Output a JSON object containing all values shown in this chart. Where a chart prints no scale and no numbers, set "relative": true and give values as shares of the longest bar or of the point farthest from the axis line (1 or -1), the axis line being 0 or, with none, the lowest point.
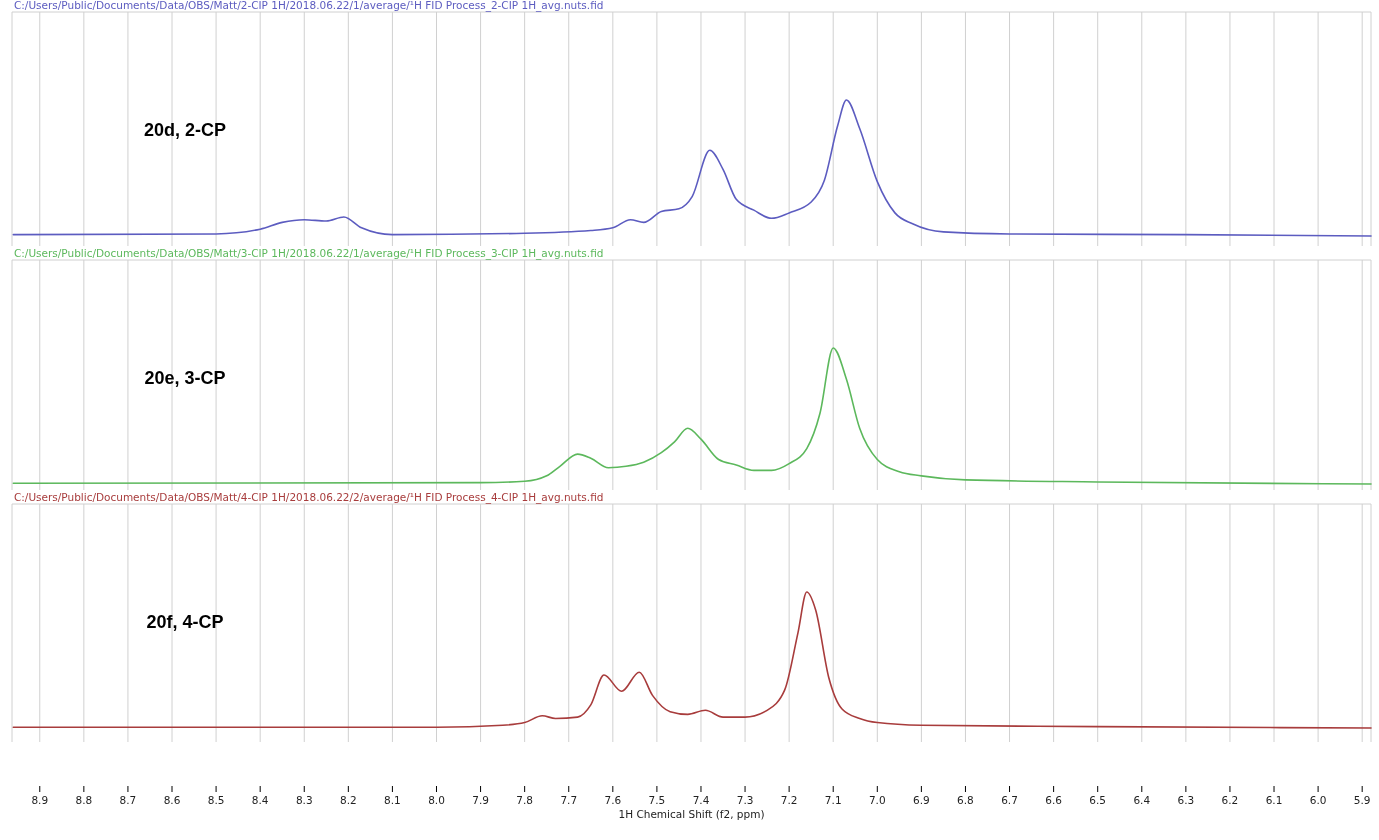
{
  "chart_data": [
    {
      "type": "line",
      "relative": true,
      "grid": "x",
      "tick_labels": false,
      "xlim": [
        8.963,
        5.88
      ],
      "xticks": [
        8.9,
        8.8,
        8.7,
        8.6,
        8.5,
        8.4,
        8.3,
        8.2,
        8.1,
        8,
        7.9,
        7.8,
        7.7,
        7.6,
        7.5,
        7.4,
        7.3,
        7.2,
        7.1,
        7,
        6.9,
        6.8,
        6.7,
        6.6,
        6.5,
        6.4,
        6.3,
        6.2,
        6.1,
        6,
        5.9
      ],
      "annotations": [
        "C:/Users/Public/Documents/Data/OBS/Matt/2-CIP 1H/2018.06.22/1/average/¹H FID Process_2-CIP 1H_avg.nuts.fid",
        "20d, 2-CP"
      ],
      "series": [
        {
          "color": "#5c5cc0",
          "x": [
            8.96,
            8.5,
            8.4,
            8.35,
            8.3,
            8.25,
            8.21,
            8.17,
            8.1,
            7.8,
            7.65,
            7.6,
            7.56,
            7.53,
            7.49,
            7.45,
            7.42,
            7.38,
            7.35,
            7.32,
            7.28,
            7.24,
            7.2,
            7.15,
            7.12,
            7.09,
            7.07,
            7.04,
            7.0,
            6.96,
            6.92,
            6.85,
            6.7,
            6.3,
            5.88
          ],
          "values": [
            0.01,
            0.015,
            0.05,
            0.1,
            0.12,
            0.11,
            0.14,
            0.06,
            0.01,
            0.02,
            0.04,
            0.06,
            0.12,
            0.1,
            0.18,
            0.2,
            0.29,
            0.63,
            0.49,
            0.27,
            0.19,
            0.13,
            0.17,
            0.25,
            0.41,
            0.81,
            1.0,
            0.79,
            0.4,
            0.17,
            0.09,
            0.03,
            0.015,
            0.01,
            0
          ]
        }
      ]
    },
    {
      "type": "line",
      "relative": true,
      "grid": "x",
      "tick_labels": false,
      "xlim": [
        8.963,
        5.88
      ],
      "xticks": [
        8.9,
        8.8,
        8.7,
        8.6,
        8.5,
        8.4,
        8.3,
        8.2,
        8.1,
        8,
        7.9,
        7.8,
        7.7,
        7.6,
        7.5,
        7.4,
        7.3,
        7.2,
        7.1,
        7,
        6.9,
        6.8,
        6.7,
        6.6,
        6.5,
        6.4,
        6.3,
        6.2,
        6.1,
        6,
        5.9
      ],
      "annotations": [
        "C:/Users/Public/Documents/Data/OBS/Matt/3-CIP 1H/2018.06.22/1/average/¹H FID Process_3-CIP 1H_avg.nuts.fid",
        "20e, 3-CP"
      ],
      "series": [
        {
          "color": "#5cb85c",
          "x": [
            8.96,
            7.9,
            7.8,
            7.75,
            7.72,
            7.68,
            7.65,
            7.61,
            7.57,
            7.53,
            7.49,
            7.46,
            7.43,
            7.4,
            7.36,
            7.32,
            7.28,
            7.24,
            7.2,
            7.16,
            7.13,
            7.1,
            7.07,
            7.04,
            7.0,
            6.95,
            6.9,
            6.8,
            6.5,
            5.88
          ],
          "values": [
            0.005,
            0.01,
            0.02,
            0.06,
            0.13,
            0.22,
            0.19,
            0.12,
            0.13,
            0.16,
            0.23,
            0.31,
            0.41,
            0.33,
            0.18,
            0.14,
            0.1,
            0.1,
            0.15,
            0.26,
            0.52,
            1.0,
            0.77,
            0.41,
            0.18,
            0.09,
            0.06,
            0.03,
            0.015,
            0
          ]
        }
      ]
    },
    {
      "type": "line",
      "relative": true,
      "grid": "x",
      "tick_labels": "x",
      "xlabel": "1H Chemical Shift (f2, ppm)",
      "xlim": [
        8.963,
        5.88
      ],
      "xticks": [
        8.9,
        8.8,
        8.7,
        8.6,
        8.5,
        8.4,
        8.3,
        8.2,
        8.1,
        {
          "value": 8,
          "label": "8.0"
        },
        7.9,
        7.8,
        7.7,
        7.6,
        7.5,
        7.4,
        7.3,
        7.2,
        7.1,
        {
          "value": 7,
          "label": "7.0"
        },
        6.9,
        6.8,
        6.7,
        6.6,
        6.5,
        6.4,
        6.3,
        6.2,
        6.1,
        {
          "value": 6,
          "label": "6.0"
        },
        5.9
      ],
      "annotations": [
        "C:/Users/Public/Documents/Data/OBS/Matt/4-CIP 1H/2018.06.22/2/average/¹H FID Process_4-CIP 1H_avg.nuts.fid",
        "20f, 4-CP"
      ],
      "series": [
        {
          "color": "#a83c3c",
          "x": [
            8.96,
            8.0,
            7.85,
            7.8,
            7.76,
            7.73,
            7.68,
            7.65,
            7.62,
            7.58,
            7.54,
            7.51,
            7.47,
            7.43,
            7.39,
            7.35,
            7.3,
            7.25,
            7.21,
            7.18,
            7.16,
            7.14,
            7.11,
            7.08,
            7.04,
            7.0,
            6.9,
            6.5,
            5.88
          ],
          "values": [
            0.005,
            0.005,
            0.02,
            0.04,
            0.09,
            0.07,
            0.08,
            0.17,
            0.39,
            0.27,
            0.41,
            0.24,
            0.12,
            0.1,
            0.13,
            0.08,
            0.08,
            0.13,
            0.28,
            0.7,
            1.0,
            0.87,
            0.37,
            0.14,
            0.07,
            0.04,
            0.02,
            0.01,
            0
          ]
        }
      ]
    }
  ]
}
